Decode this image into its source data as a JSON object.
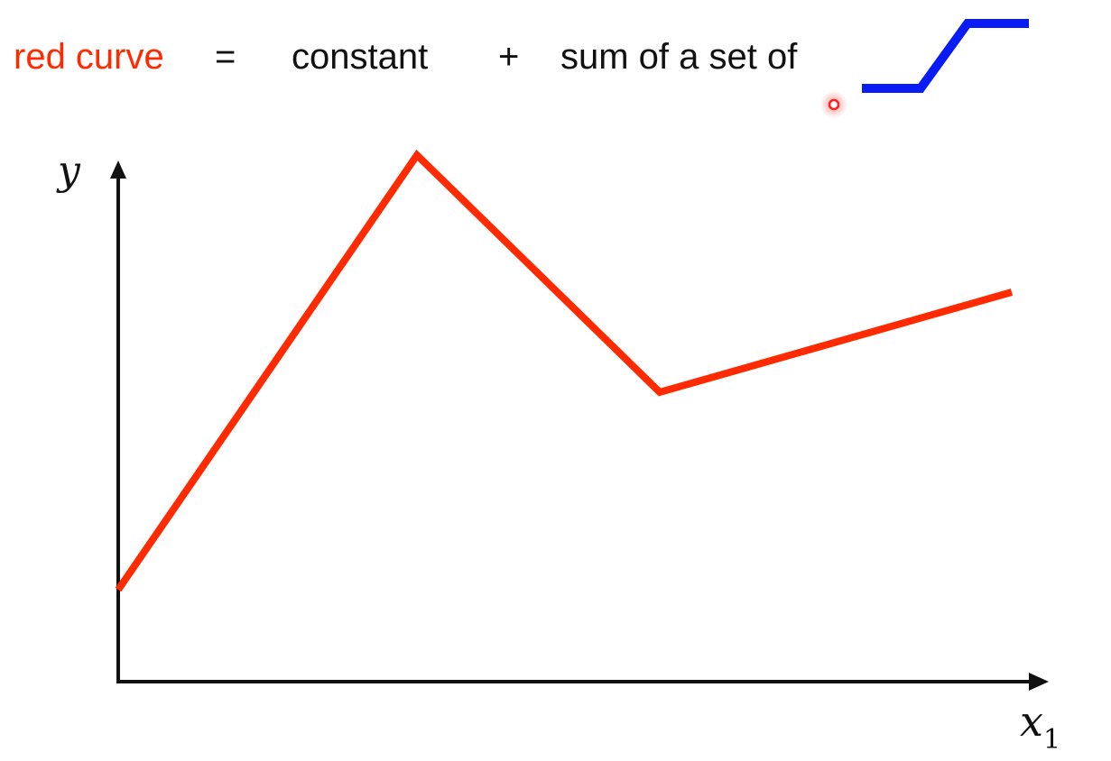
{
  "headline": {
    "red_curve": "red curve",
    "equals": "=",
    "constant": "constant",
    "plus": "+",
    "sum_of_a_set_of": "sum of a set of"
  },
  "axes": {
    "y_label": "y",
    "x_label": "x",
    "x_subscript": "1"
  },
  "colors": {
    "red_curve": "#ff2a00",
    "blue_function": "#0a1cf5",
    "axis": "#111111"
  },
  "icons": {
    "blue_function": "hard-sigmoid-icon",
    "cursor": "pointer-dot-icon"
  }
}
